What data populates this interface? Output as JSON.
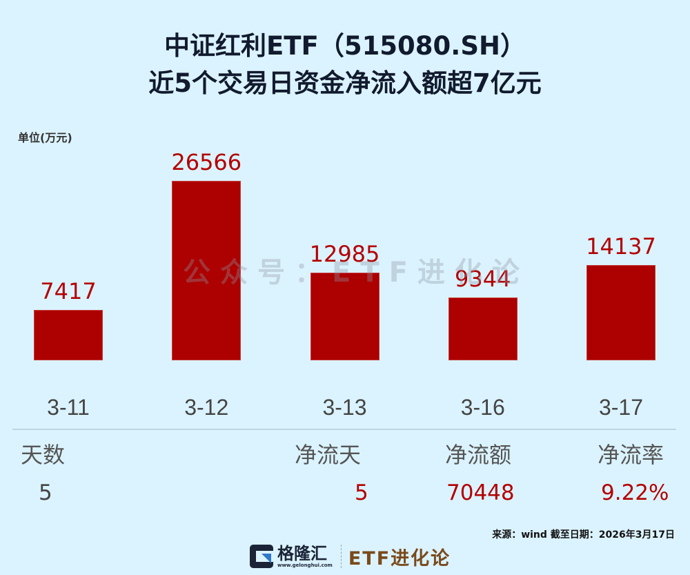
{
  "header": {
    "title_line1": "中证红利ETF（515080.SH）",
    "title_line2": "近5个交易日资金净流入额超7亿元"
  },
  "unit_label": "单位(万元)",
  "watermark": "公众号：ETF进化论",
  "colors": {
    "background": "#dbf3fe",
    "bar": "#ad0000",
    "value_text": "#b30000",
    "title": "#111a2e"
  },
  "chart_data": {
    "type": "bar",
    "title": "中证红利ETF（515080.SH） 近5个交易日资金净流入额超7亿元",
    "xlabel": "",
    "ylabel": "单位(万元)",
    "categories": [
      "3-11",
      "3-12",
      "3-13",
      "3-16",
      "3-17"
    ],
    "values": [
      7417,
      26566,
      12985,
      9344,
      14137
    ],
    "value_labels": [
      "7417",
      "26566",
      "12985",
      "9344",
      "14137"
    ],
    "ylim": [
      0,
      26566
    ],
    "grid": false,
    "legend": null
  },
  "stats": {
    "days": {
      "label": "天数",
      "value": "5"
    },
    "net_inflow_days": {
      "label": "净流天",
      "value": "5"
    },
    "net_inflow_amount": {
      "label": "净流额",
      "value": "70448"
    },
    "net_inflow_rate": {
      "label": "净流率",
      "value": "9.22%"
    }
  },
  "footer": {
    "source_note": "来源：wind  截至日期：2026年3月17日",
    "logo_cn": "格隆汇",
    "logo_url": "www.gelonghui.com",
    "brand": "ETF进化论"
  }
}
